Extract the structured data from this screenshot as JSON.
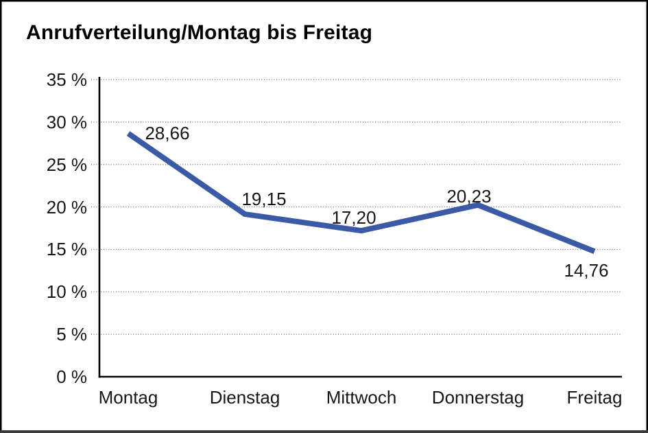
{
  "window": {
    "background": "#ffffff",
    "border_color": "#000000"
  },
  "colors": {
    "line": "#3B5AA5",
    "grid": "#666666",
    "axis": "#000000",
    "text": "#161616"
  },
  "chart_data": {
    "type": "line",
    "title": "Anrufverteilung/Montag bis Freitag",
    "categories": [
      "Montag",
      "Dienstag",
      "Mittwoch",
      "Donnerstag",
      "Freitag"
    ],
    "values": [
      28.66,
      19.15,
      17.2,
      20.23,
      14.76
    ],
    "value_labels": [
      "28,66",
      "19,15",
      "17,20",
      "20,23",
      "14,76"
    ],
    "y_ticks": [
      {
        "value": 35,
        "label": "35 %"
      },
      {
        "value": 30,
        "label": "30 %"
      },
      {
        "value": 25,
        "label": "25 %"
      },
      {
        "value": 20,
        "label": "20 %"
      },
      {
        "value": 15,
        "label": "15 %"
      },
      {
        "value": 10,
        "label": "10 %"
      },
      {
        "value": 5,
        "label": "5 %"
      },
      {
        "value": 0,
        "label": "0 %"
      }
    ],
    "ylim": [
      0,
      35
    ],
    "xlabel": "",
    "ylabel": "",
    "grid": "horizontal-dotted",
    "legend": "none"
  }
}
